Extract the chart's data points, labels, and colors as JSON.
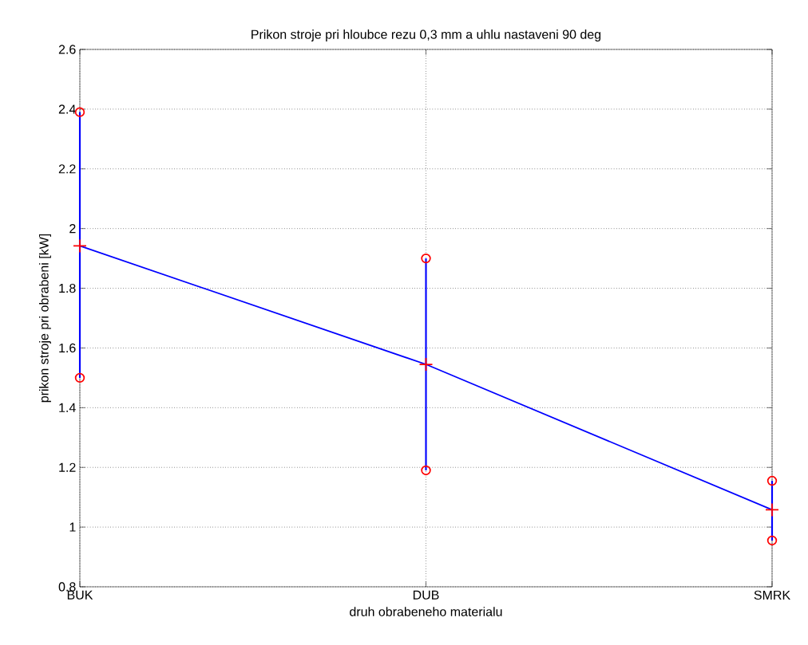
{
  "chart_data": {
    "type": "line",
    "title": "Prikon stroje pri hloubce rezu 0,3 mm a uhlu nastaveni 90 deg",
    "xlabel": "druh obrabeneho materialu",
    "ylabel": "prikon stroje pri obrabeni [kW]",
    "categories": [
      "BUK",
      "DUB",
      "SMRK"
    ],
    "series": [
      {
        "color": "#0000ff",
        "values": [
          1.942,
          1.545,
          1.058
        ],
        "errors": [
          [
            1.5,
            2.39
          ],
          [
            1.19,
            1.9
          ],
          [
            0.955,
            1.155
          ]
        ],
        "marker": "cross"
      },
      {
        "type": "scatter",
        "color": "#ff0000",
        "marker": "circle",
        "values": [
          2.39,
          1.9,
          1.155
        ]
      },
      {
        "type": "scatter",
        "color": "#ff0000",
        "marker": "circle",
        "values": [
          1.5,
          1.19,
          0.955
        ]
      }
    ],
    "ylim": [
      0.8,
      2.6
    ],
    "yticks": [
      0.8,
      1,
      1.2,
      1.4,
      1.6,
      1.8,
      2,
      2.2,
      2.4,
      2.6
    ],
    "grid": true,
    "line_style": "solid"
  }
}
